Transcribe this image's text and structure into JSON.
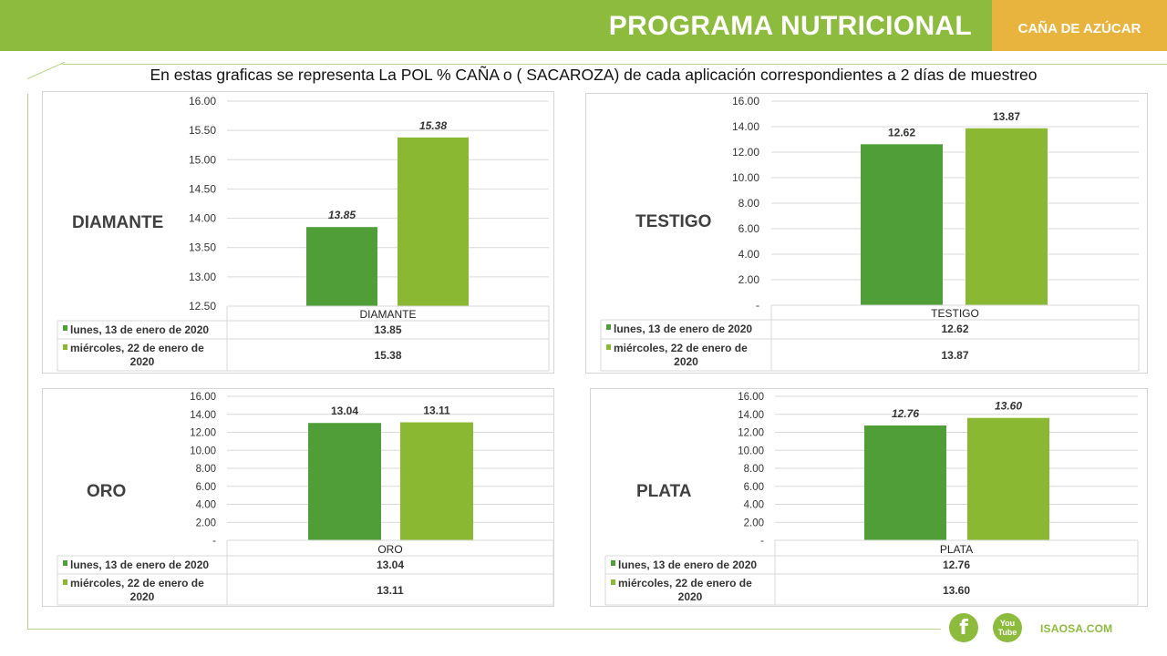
{
  "header": {
    "title": "PROGRAMA NUTRICIONAL",
    "tag": "CAÑA DE AZÚCAR"
  },
  "subtitle": "En estas graficas se representa La POL % CAÑA o ( SACAROZA) de cada aplicación correspondientes a 2 días de muestreo",
  "colors": {
    "series1": "#4f9e38",
    "series2": "#8ab832",
    "header": "#8dbb3d",
    "accent": "#e9b43e"
  },
  "chart_data": [
    {
      "type": "bar",
      "label": "DIAMANTE",
      "categories": [
        "DIAMANTE"
      ],
      "series": [
        {
          "name": "lunes, 13 de enero de 2020",
          "values": [
            13.85
          ],
          "display": [
            "13.85"
          ]
        },
        {
          "name": "miércoles, 22 de enero de 2020",
          "values": [
            15.38
          ],
          "display": [
            "15.38"
          ]
        }
      ],
      "ylim": [
        12.5,
        16.0
      ],
      "yticks": [
        "16.00",
        "15.50",
        "15.00",
        "14.50",
        "14.00",
        "13.50",
        "13.00",
        "12.50"
      ],
      "data_label_style": "italic",
      "grid": true,
      "data_table": true
    },
    {
      "type": "bar",
      "label": "TESTIGO",
      "categories": [
        "TESTIGO"
      ],
      "series": [
        {
          "name": "lunes, 13 de enero de 2020",
          "values": [
            12.62
          ],
          "display": [
            "12.62"
          ]
        },
        {
          "name": "miércoles, 22 de enero de 2020",
          "values": [
            13.87
          ],
          "display": [
            "13.87"
          ]
        }
      ],
      "ylim": [
        0,
        16.0
      ],
      "yticks": [
        "16.00",
        "14.00",
        "12.00",
        "10.00",
        "8.00",
        "6.00",
        "4.00",
        "2.00",
        "-"
      ],
      "data_label_style": "normal",
      "grid": true,
      "data_table": true
    },
    {
      "type": "bar",
      "label": "ORO",
      "categories": [
        "ORO"
      ],
      "series": [
        {
          "name": "lunes, 13 de enero de 2020",
          "values": [
            13.04
          ],
          "display": [
            "13.04"
          ]
        },
        {
          "name": "miércoles, 22 de enero de 2020",
          "values": [
            13.11
          ],
          "display": [
            "13.11"
          ]
        }
      ],
      "ylim": [
        0,
        16.0
      ],
      "yticks": [
        "16.00",
        "14.00",
        "12.00",
        "10.00",
        "8.00",
        "6.00",
        "4.00",
        "2.00",
        "-"
      ],
      "data_label_style": "normal",
      "grid": true,
      "data_table": true
    },
    {
      "type": "bar",
      "label": "PLATA",
      "categories": [
        "PLATA"
      ],
      "series": [
        {
          "name": "lunes, 13 de enero de 2020",
          "values": [
            12.76
          ],
          "display": [
            "12.76"
          ]
        },
        {
          "name": "miércoles, 22 de enero de 2020",
          "values": [
            13.6
          ],
          "display": [
            "13.60"
          ]
        }
      ],
      "ylim": [
        0,
        16.0
      ],
      "yticks": [
        "16.00",
        "14.00",
        "12.00",
        "10.00",
        "8.00",
        "6.00",
        "4.00",
        "2.00",
        "-"
      ],
      "data_label_style": "italic",
      "grid": true,
      "data_table": true
    }
  ],
  "footer": {
    "facebook_icon": "f",
    "youtube_icon_line1": "You",
    "youtube_icon_line2": "Tube",
    "site": "ISAOSA.COM"
  }
}
